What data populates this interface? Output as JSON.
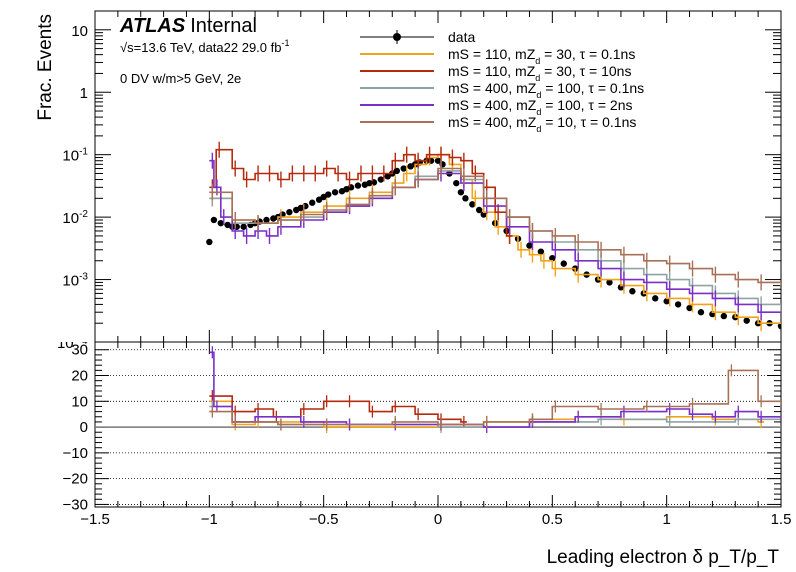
{
  "header": {
    "experiment": "ATLAS",
    "status": "Internal",
    "sqrt_s_symbol": "√s",
    "energy_lumi": "=13.6 TeV, data22 29.0 fb",
    "lumi_exp": "-1",
    "selection": "0 DV w/m>5 GeV, 2e"
  },
  "chart_data": [
    {
      "type": "line",
      "role": "top-panel",
      "ylabel": "Frac. Events",
      "yscale": "log",
      "ylim": [
        0.0001,
        20
      ],
      "ytick_values": [
        0.001,
        0.01,
        0.1,
        1,
        10
      ],
      "ytick_labels": [
        {
          "base": "10",
          "exp": "-3"
        },
        {
          "base": "10",
          "exp": "-2"
        },
        {
          "base": "10",
          "exp": "-1"
        },
        {
          "base": "1",
          "exp": ""
        },
        {
          "base": "10",
          "exp": ""
        }
      ],
      "bottom_partial_label": "10⁻⁴",
      "xlim": [
        -1.5,
        1.5
      ],
      "grid": false,
      "legend_position": "top-center",
      "legend": [
        {
          "label": "data",
          "color": "#000000",
          "marker": "circle"
        },
        {
          "label": "mS = 110, mZ",
          "sub": "d",
          "rest": " = 30, τ = 0.1ns",
          "color": "#f2a31c"
        },
        {
          "label": "mS = 110, mZ",
          "sub": "d",
          "rest": " = 30, τ = 10ns",
          "color": "#b42a0c"
        },
        {
          "label": "mS = 400, mZ",
          "sub": "d",
          "rest": " = 100, τ = 0.1ns",
          "color": "#8fa3a3"
        },
        {
          "label": "mS = 400, mZ",
          "sub": "d",
          "rest": " = 100, τ = 2ns",
          "color": "#7a2fc8"
        },
        {
          "label": "mS = 400, mZ",
          "sub": "d",
          "rest": " = 10, τ = 0.1ns",
          "color": "#a87058"
        }
      ],
      "series": [
        {
          "name": "data",
          "color": "#000000",
          "x": [
            -1.0,
            -0.98,
            -0.95,
            -0.92,
            -0.9,
            -0.88,
            -0.85,
            -0.82,
            -0.8,
            -0.78,
            -0.75,
            -0.72,
            -0.7,
            -0.68,
            -0.65,
            -0.62,
            -0.6,
            -0.58,
            -0.55,
            -0.52,
            -0.5,
            -0.48,
            -0.45,
            -0.42,
            -0.4,
            -0.38,
            -0.35,
            -0.32,
            -0.3,
            -0.28,
            -0.25,
            -0.22,
            -0.2,
            -0.18,
            -0.15,
            -0.12,
            -0.1,
            -0.08,
            -0.05,
            -0.03,
            0.0,
            0.02,
            0.05,
            0.08,
            0.1,
            0.12,
            0.15,
            0.18,
            0.2,
            0.25,
            0.3,
            0.35,
            0.4,
            0.45,
            0.5,
            0.55,
            0.6,
            0.65,
            0.7,
            0.75,
            0.8,
            0.85,
            0.9,
            0.95,
            1.0,
            1.05,
            1.1,
            1.15,
            1.2,
            1.25,
            1.3,
            1.35,
            1.4,
            1.45,
            1.5
          ],
          "y": [
            0.004,
            0.009,
            0.008,
            0.0075,
            0.007,
            0.007,
            0.007,
            0.0075,
            0.008,
            0.0085,
            0.009,
            0.0095,
            0.01,
            0.011,
            0.012,
            0.013,
            0.014,
            0.015,
            0.017,
            0.019,
            0.021,
            0.023,
            0.025,
            0.026,
            0.028,
            0.03,
            0.032,
            0.033,
            0.035,
            0.036,
            0.04,
            0.045,
            0.05,
            0.055,
            0.06,
            0.065,
            0.07,
            0.075,
            0.08,
            0.08,
            0.08,
            0.07,
            0.05,
            0.035,
            0.025,
            0.02,
            0.016,
            0.013,
            0.011,
            0.008,
            0.006,
            0.0045,
            0.0035,
            0.0028,
            0.0022,
            0.0018,
            0.0015,
            0.0012,
            0.001,
            0.0009,
            0.00075,
            0.00065,
            0.0006,
            0.0005,
            0.00045,
            0.0004,
            0.00035,
            0.0003,
            0.00028,
            0.00026,
            0.00025,
            0.00022,
            0.0002,
            0.0002,
            0.00018
          ]
        },
        {
          "name": "mS = 110, mZd = 30, τ = 0.1ns",
          "color": "#f2a31c",
          "x": [
            -1.0,
            -0.9,
            -0.8,
            -0.7,
            -0.6,
            -0.5,
            -0.4,
            -0.3,
            -0.2,
            -0.15,
            -0.1,
            -0.05,
            0.0,
            0.05,
            0.1,
            0.15,
            0.2,
            0.25,
            0.3,
            0.35,
            0.4,
            0.45,
            0.5,
            0.6,
            0.7,
            0.8,
            0.9,
            1.0,
            1.1,
            1.2,
            1.3,
            1.4,
            1.5
          ],
          "y": [
            0.02,
            0.009,
            0.008,
            0.01,
            0.012,
            0.015,
            0.02,
            0.025,
            0.035,
            0.05,
            0.07,
            0.09,
            0.1,
            0.07,
            0.04,
            0.02,
            0.012,
            0.007,
            0.005,
            0.003,
            0.0025,
            0.002,
            0.0015,
            0.0012,
            0.001,
            0.0008,
            0.0006,
            0.0005,
            0.0004,
            0.0003,
            0.00025,
            0.0002,
            0.0002
          ]
        },
        {
          "name": "mS = 110, mZd = 30, τ = 10ns",
          "color": "#b42a0c",
          "x": [
            -1.0,
            -0.97,
            -0.9,
            -0.85,
            -0.8,
            -0.75,
            -0.7,
            -0.65,
            -0.6,
            -0.55,
            -0.5,
            -0.45,
            -0.4,
            -0.35,
            -0.3,
            -0.25,
            -0.2,
            -0.15,
            -0.1,
            -0.05,
            0.0,
            0.05,
            0.1,
            0.15,
            0.2,
            0.25,
            0.3
          ],
          "y": [
            0.03,
            0.12,
            0.06,
            0.04,
            0.05,
            0.05,
            0.04,
            0.05,
            0.05,
            0.05,
            0.06,
            0.05,
            0.04,
            0.05,
            0.05,
            0.05,
            0.08,
            0.1,
            0.08,
            0.1,
            0.1,
            0.09,
            0.08,
            0.05,
            0.03,
            0.012,
            0.005
          ]
        },
        {
          "name": "mS = 400, mZd = 100, τ = 0.1ns",
          "color": "#8fa3a3",
          "x": [
            -1.0,
            -0.9,
            -0.8,
            -0.7,
            -0.6,
            -0.5,
            -0.4,
            -0.3,
            -0.2,
            -0.1,
            0.0,
            0.1,
            0.2,
            0.3,
            0.4,
            0.5,
            0.6,
            0.7,
            0.8,
            0.9,
            1.0,
            1.1,
            1.2,
            1.3,
            1.4,
            1.5
          ],
          "y": [
            0.02,
            0.008,
            0.008,
            0.009,
            0.01,
            0.012,
            0.015,
            0.02,
            0.03,
            0.045,
            0.055,
            0.04,
            0.02,
            0.01,
            0.006,
            0.004,
            0.003,
            0.002,
            0.0015,
            0.0012,
            0.001,
            0.0008,
            0.0006,
            0.0005,
            0.0004,
            0.0003
          ]
        },
        {
          "name": "mS = 400, mZd = 100, τ = 2ns",
          "color": "#7a2fc8",
          "x": [
            -1.0,
            -0.98,
            -0.95,
            -0.9,
            -0.85,
            -0.8,
            -0.75,
            -0.7,
            -0.6,
            -0.5,
            -0.4,
            -0.3,
            -0.2,
            -0.1,
            0.0,
            0.1,
            0.2,
            0.3,
            0.4,
            0.5,
            0.6,
            0.7,
            0.8,
            0.9,
            1.0,
            1.1,
            1.2,
            1.3,
            1.4,
            1.5
          ],
          "y": [
            0.08,
            0.03,
            0.01,
            0.006,
            0.005,
            0.006,
            0.005,
            0.007,
            0.009,
            0.012,
            0.015,
            0.02,
            0.03,
            0.04,
            0.05,
            0.035,
            0.015,
            0.007,
            0.004,
            0.003,
            0.002,
            0.0015,
            0.001,
            0.0009,
            0.0007,
            0.0006,
            0.0005,
            0.0004,
            0.0003,
            0.0003
          ]
        },
        {
          "name": "mS = 400, mZd = 10, τ = 0.1ns",
          "color": "#a87058",
          "x": [
            -1.0,
            -0.9,
            -0.8,
            -0.7,
            -0.6,
            -0.5,
            -0.4,
            -0.3,
            -0.2,
            -0.1,
            0.0,
            0.1,
            0.2,
            0.3,
            0.4,
            0.5,
            0.6,
            0.7,
            0.8,
            0.9,
            1.0,
            1.1,
            1.2,
            1.3,
            1.4,
            1.5
          ],
          "y": [
            0.025,
            0.009,
            0.008,
            0.009,
            0.011,
            0.013,
            0.016,
            0.022,
            0.03,
            0.04,
            0.06,
            0.045,
            0.02,
            0.01,
            0.006,
            0.005,
            0.004,
            0.003,
            0.0025,
            0.002,
            0.0018,
            0.0015,
            0.0012,
            0.001,
            0.0009,
            0.0008
          ]
        }
      ]
    },
    {
      "type": "line",
      "role": "ratio-panel",
      "ylim": [
        -31,
        33
      ],
      "yticks": [
        -30,
        -20,
        -10,
        0,
        10,
        20,
        30
      ],
      "ytick_labels": [
        "−30",
        "−20",
        "−10",
        "0",
        "10",
        "20",
        "30"
      ],
      "xlim": [
        -1.5,
        1.5
      ],
      "xticks": [
        -1.5,
        -1,
        -0.5,
        0,
        0.5,
        1,
        1.5
      ],
      "xtick_labels": [
        "−1.5",
        "−1",
        "−0.5",
        "0",
        "0.5",
        "1",
        "1.5"
      ],
      "xlabel": "Leading electron δ p_T/p_T",
      "grid": "dotted-horizontal",
      "series": [
        {
          "name": "mS = 110, mZd = 30, τ = 0.1ns",
          "color": "#f2a31c",
          "x": [
            -1.0,
            -0.9,
            -0.8,
            -0.5,
            0.0,
            0.2,
            0.4,
            0.6,
            0.8,
            1.0,
            1.2,
            1.4
          ],
          "y": [
            10,
            1,
            2,
            0,
            1,
            2,
            3,
            4,
            3,
            4,
            3,
            2
          ]
        },
        {
          "name": "mS = 110, mZd = 30, τ = 10ns",
          "color": "#b42a0c",
          "x": [
            -1.0,
            -0.9,
            -0.8,
            -0.72,
            -0.6,
            -0.5,
            -0.4,
            -0.3,
            -0.2,
            -0.1,
            0.0,
            0.1
          ],
          "y": [
            12,
            6,
            7,
            4,
            7,
            10,
            10,
            6,
            8,
            5,
            3,
            2
          ]
        },
        {
          "name": "mS = 400, mZd = 100, τ = 0.1ns",
          "color": "#8fa3a3",
          "x": [
            -1.0,
            -0.9,
            -0.7,
            -0.4,
            0.0,
            0.4,
            0.7,
            1.0,
            1.3,
            1.5
          ],
          "y": [
            8,
            2,
            1,
            1,
            0,
            2,
            3,
            2,
            3,
            4
          ]
        },
        {
          "name": "mS = 400, mZd = 100, τ = 2ns",
          "color": "#7a2fc8",
          "x": [
            -1.0,
            -0.98,
            -0.9,
            -0.8,
            -0.6,
            -0.4,
            -0.2,
            0.0,
            0.2,
            0.4,
            0.6,
            0.8,
            1.0,
            1.1,
            1.2,
            1.3,
            1.4,
            1.5
          ],
          "y": [
            29,
            8,
            2,
            4,
            2,
            1,
            1,
            1,
            0,
            2,
            4,
            6,
            7,
            5,
            4,
            6,
            4,
            3
          ]
        },
        {
          "name": "mS = 400, mZd = 10, τ = 0.1ns",
          "color": "#a87058",
          "x": [
            -1.0,
            -0.9,
            -0.7,
            -0.5,
            -0.2,
            0.0,
            0.2,
            0.4,
            0.5,
            0.7,
            0.9,
            1.1,
            1.27,
            1.4,
            1.5
          ],
          "y": [
            6,
            2,
            1,
            1,
            2,
            1,
            2,
            3,
            8,
            7,
            8,
            9,
            22,
            10,
            8
          ]
        }
      ]
    }
  ]
}
